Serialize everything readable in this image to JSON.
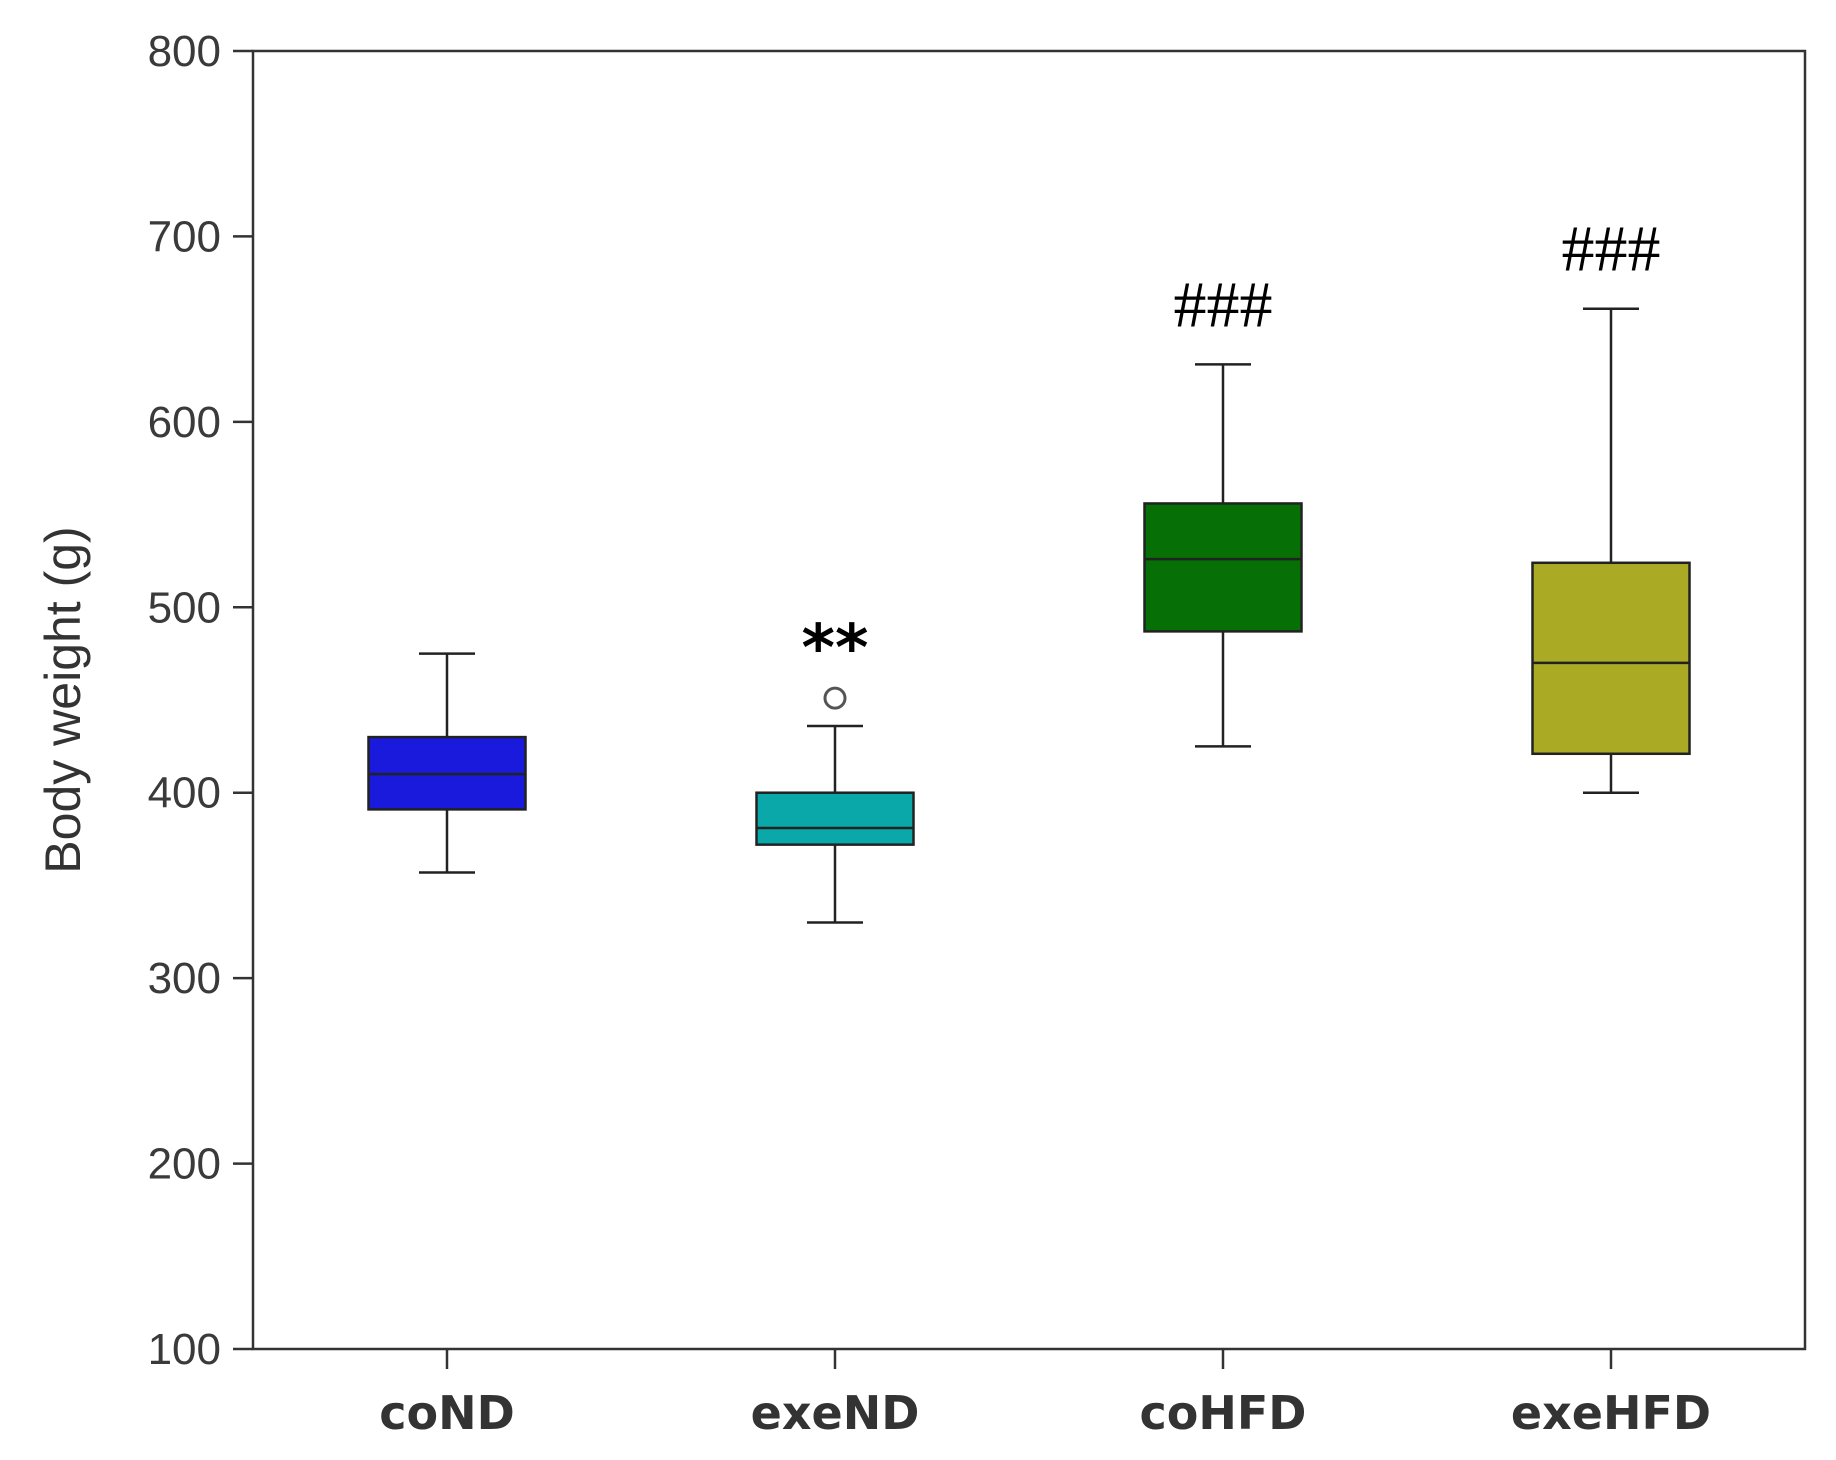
{
  "chart_data": {
    "type": "box",
    "categories": [
      "coND",
      "exeND",
      "coHFD",
      "exeHFD"
    ],
    "ylabel": "Body weight (g)",
    "xlabel": "",
    "ylim": [
      100,
      800
    ],
    "yticks": [
      100,
      200,
      300,
      400,
      500,
      600,
      700,
      800
    ],
    "grid": false,
    "boxes": [
      {
        "category": "coND",
        "min": 357,
        "q1": 391,
        "median": 410,
        "q3": 430,
        "max": 475,
        "outliers": [],
        "color": "#1a1adc",
        "annotation": ""
      },
      {
        "category": "exeND",
        "min": 330,
        "q1": 372,
        "median": 381,
        "q3": 400,
        "max": 436,
        "outliers": [
          451
        ],
        "color": "#0aa8a8",
        "annotation": "**"
      },
      {
        "category": "coHFD",
        "min": 425,
        "q1": 487,
        "median": 526,
        "q3": 556,
        "max": 631,
        "outliers": [],
        "color": "#067006",
        "annotation": "###"
      },
      {
        "category": "exeHFD",
        "min": 400,
        "q1": 421,
        "median": 470,
        "q3": 524,
        "max": 661,
        "outliers": [],
        "color": "#aaaa24",
        "annotation": "###"
      }
    ]
  }
}
